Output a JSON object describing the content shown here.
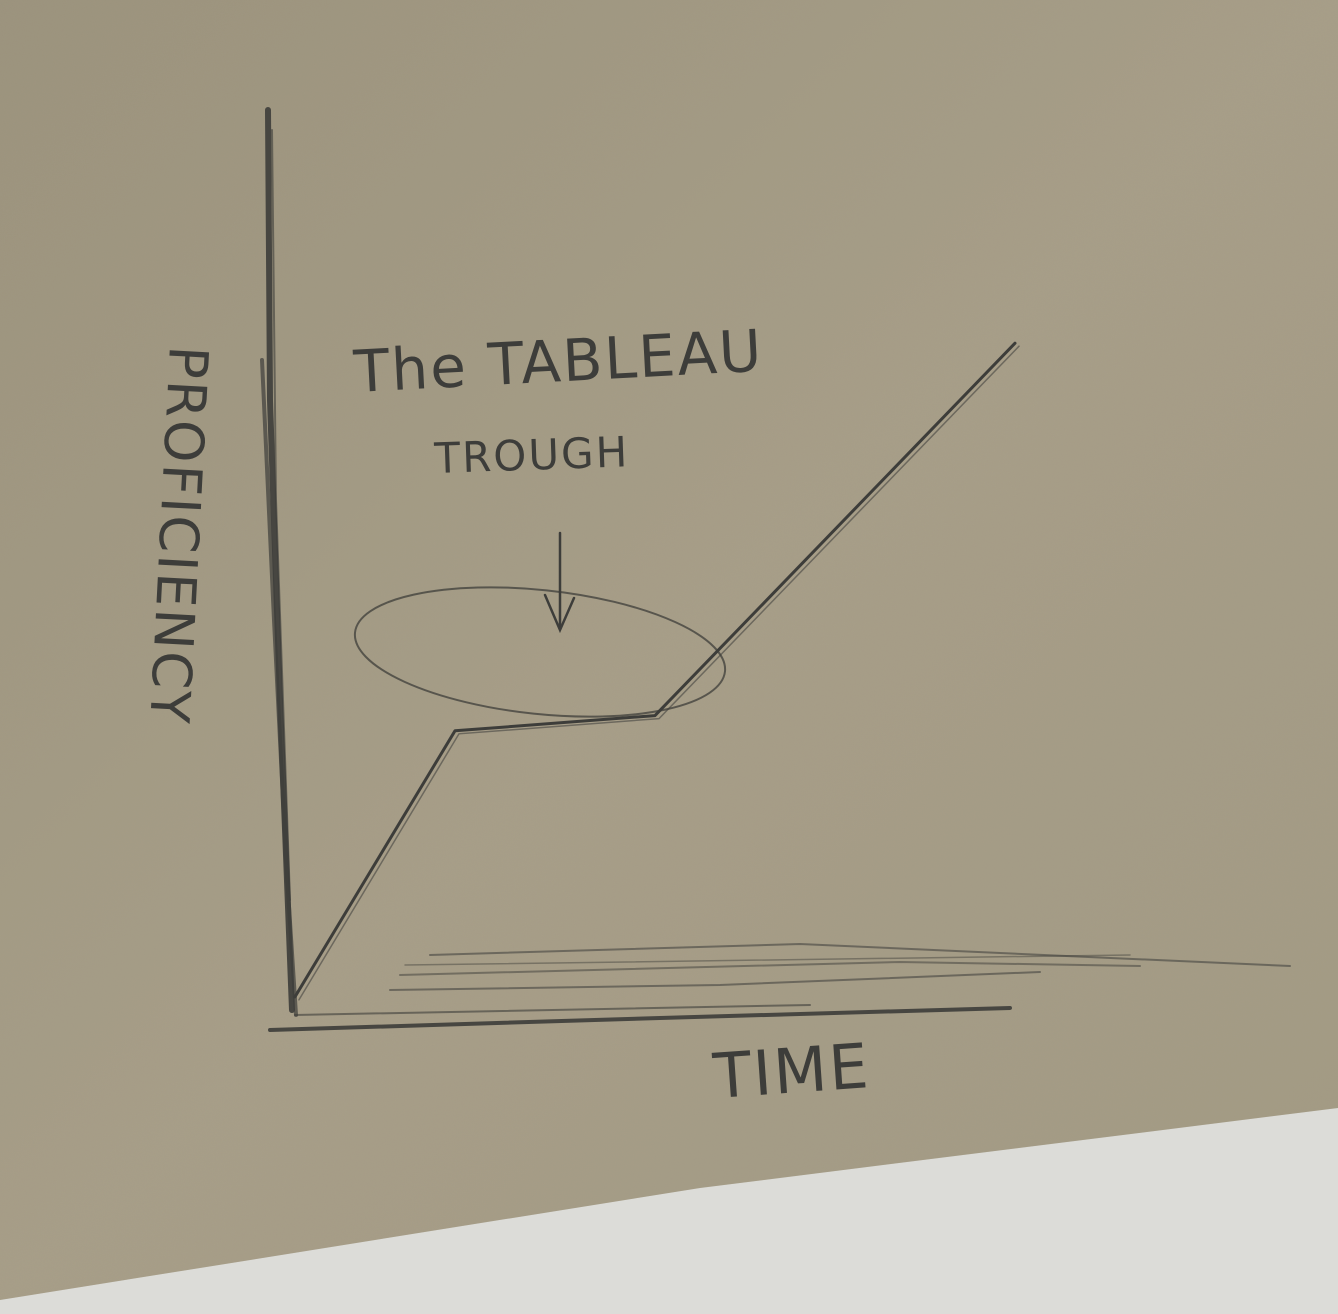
{
  "diagram": {
    "annotation_line1": "The TABLEAU",
    "annotation_line2": "TROUGH",
    "y_axis_label": "PROFICIENCY",
    "x_axis_label": "TIME",
    "curve_points": [
      {
        "time": 0.0,
        "proficiency": 0.02
      },
      {
        "time": 0.2,
        "proficiency": 0.37
      },
      {
        "time": 0.45,
        "proficiency": 0.39
      },
      {
        "time": 0.9,
        "proficiency": 0.88
      }
    ],
    "highlighted_region": "trough",
    "colors": {
      "paper": "#a89f88",
      "pencil": "#3d3d3a",
      "desk": "#dcdcd8"
    }
  }
}
